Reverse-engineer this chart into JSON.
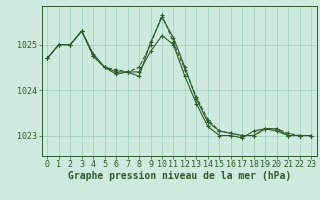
{
  "bg_color": "#ceeadf",
  "grid_color": "#9ecfbf",
  "line_color": "#2d5a27",
  "xlabel": "Graphe pression niveau de la mer (hPa)",
  "xlabel_fontsize": 7,
  "tick_fontsize": 6,
  "yticks": [
    1023,
    1024,
    1025
  ],
  "ylim": [
    1022.55,
    1025.85
  ],
  "xlim": [
    -0.5,
    23.5
  ],
  "xticks": [
    0,
    1,
    2,
    3,
    4,
    5,
    6,
    7,
    8,
    9,
    10,
    11,
    12,
    13,
    14,
    15,
    16,
    17,
    18,
    19,
    20,
    21,
    22,
    23
  ],
  "series": [
    {
      "x": [
        0,
        1,
        2,
        3,
        4,
        5,
        6,
        7,
        8,
        9,
        10,
        11,
        12,
        13,
        14,
        15,
        16,
        17,
        18,
        19,
        20,
        21,
        22,
        23
      ],
      "y": [
        1024.7,
        1025.0,
        1025.0,
        1025.3,
        1024.8,
        1024.5,
        1024.4,
        1024.4,
        1024.3,
        1025.05,
        1025.6,
        1025.15,
        1024.5,
        1023.8,
        1023.3,
        1023.1,
        1023.05,
        1023.0,
        1023.0,
        1023.15,
        1023.15,
        1023.0,
        1023.0,
        1023.0
      ],
      "linestyle": "solid"
    },
    {
      "x": [
        0,
        1,
        2,
        3,
        4,
        5,
        6,
        7,
        8,
        9,
        10,
        11,
        12,
        13,
        14,
        15,
        16,
        17,
        18,
        19,
        20,
        21,
        22,
        23
      ],
      "y": [
        1024.7,
        1025.0,
        1025.0,
        1025.3,
        1024.75,
        1024.5,
        1024.45,
        1024.4,
        1024.5,
        1025.0,
        1025.65,
        1025.05,
        1024.45,
        1023.85,
        1023.35,
        1023.1,
        1023.05,
        1023.0,
        1023.0,
        1023.15,
        1023.15,
        1023.05,
        1023.0,
        1023.0
      ],
      "linestyle": "dashed"
    },
    {
      "x": [
        0,
        1,
        2,
        3,
        4,
        5,
        6,
        7,
        8,
        9,
        10,
        11,
        12,
        13,
        14,
        15,
        16,
        17,
        18,
        19,
        20,
        21,
        22,
        23
      ],
      "y": [
        1024.7,
        1025.0,
        1025.0,
        1025.3,
        1024.75,
        1024.5,
        1024.35,
        1024.4,
        1024.4,
        1024.85,
        1025.2,
        1025.0,
        1024.3,
        1023.7,
        1023.2,
        1023.0,
        1023.0,
        1022.95,
        1023.1,
        1023.15,
        1023.1,
        1023.0,
        1023.0,
        1023.0
      ],
      "linestyle": "solid"
    }
  ]
}
